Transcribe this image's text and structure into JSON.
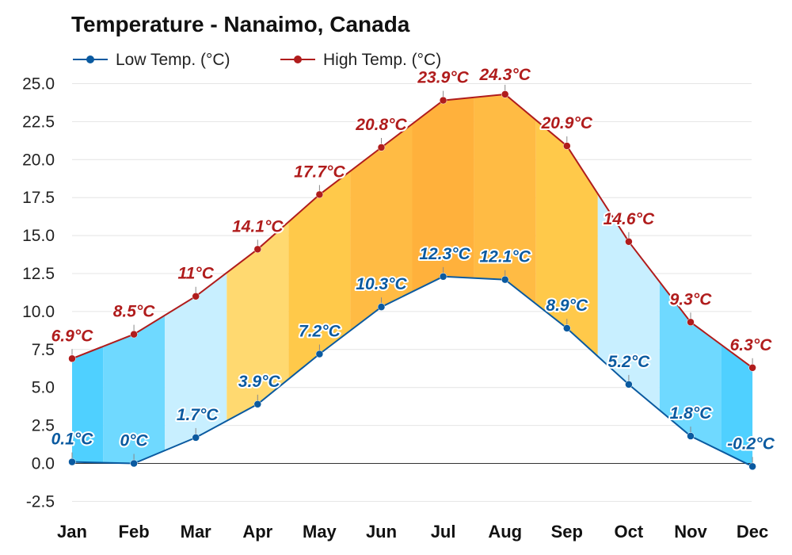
{
  "chart_data": {
    "type": "area",
    "title": "Temperature - Nanaimo, Canada",
    "categories": [
      "Jan",
      "Feb",
      "Mar",
      "Apr",
      "May",
      "Jun",
      "Jul",
      "Aug",
      "Sep",
      "Oct",
      "Nov",
      "Dec"
    ],
    "series": [
      {
        "name": "Low Temp. (°C)",
        "color": "#0a5aa0",
        "values": [
          0.1,
          0,
          1.7,
          3.9,
          7.2,
          10.3,
          12.3,
          12.1,
          8.9,
          5.2,
          1.8,
          -0.2
        ],
        "labels": [
          "0.1°C",
          "0°C",
          "1.7°C",
          "3.9°C",
          "7.2°C",
          "10.3°C",
          "12.3°C",
          "12.1°C",
          "8.9°C",
          "5.2°C",
          "1.8°C",
          "-0.2°C"
        ]
      },
      {
        "name": "High Temp. (°C)",
        "color": "#b01c1c",
        "values": [
          6.9,
          8.5,
          11,
          14.1,
          17.7,
          20.8,
          23.9,
          24.3,
          20.9,
          14.6,
          9.3,
          6.3
        ],
        "labels": [
          "6.9°C",
          "8.5°C",
          "11°C",
          "14.1°C",
          "17.7°C",
          "20.8°C",
          "23.9°C",
          "24.3°C",
          "20.9°C",
          "14.6°C",
          "9.3°C",
          "6.3°C"
        ]
      }
    ],
    "band_colors": [
      "#4fd0ff",
      "#6fd9ff",
      "#c8efff",
      "#ffd970",
      "#ffc94a",
      "#ffbb44",
      "#ffb13c",
      "#ffbb44",
      "#ffc94a",
      "#c8efff",
      "#6fd9ff",
      "#4fd0ff"
    ],
    "yticks": [
      "25.0",
      "22.5",
      "20.0",
      "17.5",
      "15.0",
      "12.5",
      "10.0",
      "7.5",
      "5.0",
      "2.5",
      "0.0",
      "-2.5"
    ],
    "ylim": [
      -3.5,
      25
    ],
    "legend_position": "top-left",
    "grid": true
  }
}
